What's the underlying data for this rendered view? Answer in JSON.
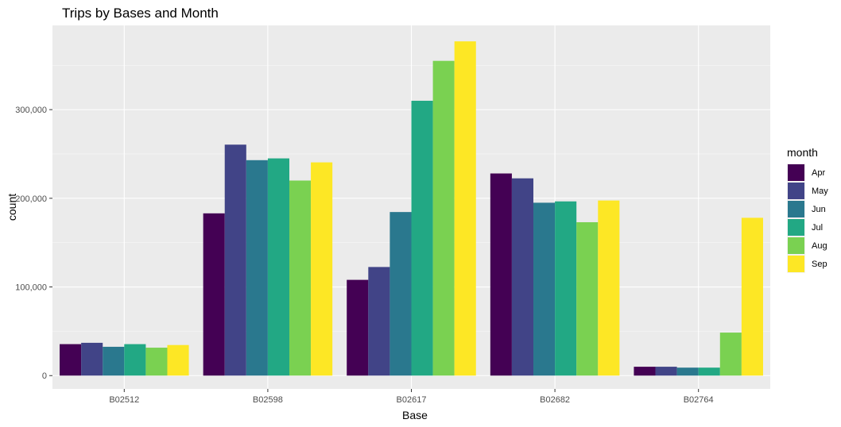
{
  "chart_data": {
    "type": "bar",
    "title": "Trips by Bases and Month",
    "xlabel": "Base",
    "ylabel": "count",
    "categories": [
      "B02512",
      "B02598",
      "B02617",
      "B02682",
      "B02764"
    ],
    "ylim": [
      -15000,
      395000
    ],
    "yticks": [
      0,
      100000,
      200000,
      300000
    ],
    "ytick_labels": [
      "0",
      "100,000",
      "200,000",
      "300,000"
    ],
    "grid": true,
    "legend": {
      "title": "month",
      "position": "right"
    },
    "series": [
      {
        "name": "Apr",
        "color": "#440154",
        "values": [
          35500,
          183000,
          108000,
          228000,
          10000
        ]
      },
      {
        "name": "May",
        "color": "#414487",
        "values": [
          37000,
          260500,
          122500,
          222500,
          10000
        ]
      },
      {
        "name": "Jun",
        "color": "#2A788E",
        "values": [
          32500,
          243000,
          184500,
          195000,
          9000
        ]
      },
      {
        "name": "Jul",
        "color": "#22A884",
        "values": [
          35500,
          245000,
          310000,
          196500,
          9000
        ]
      },
      {
        "name": "Aug",
        "color": "#7AD151",
        "values": [
          31500,
          220000,
          355000,
          173000,
          48500
        ]
      },
      {
        "name": "Sep",
        "color": "#FDE725",
        "values": [
          34500,
          240500,
          377000,
          197500,
          178000
        ]
      }
    ]
  }
}
